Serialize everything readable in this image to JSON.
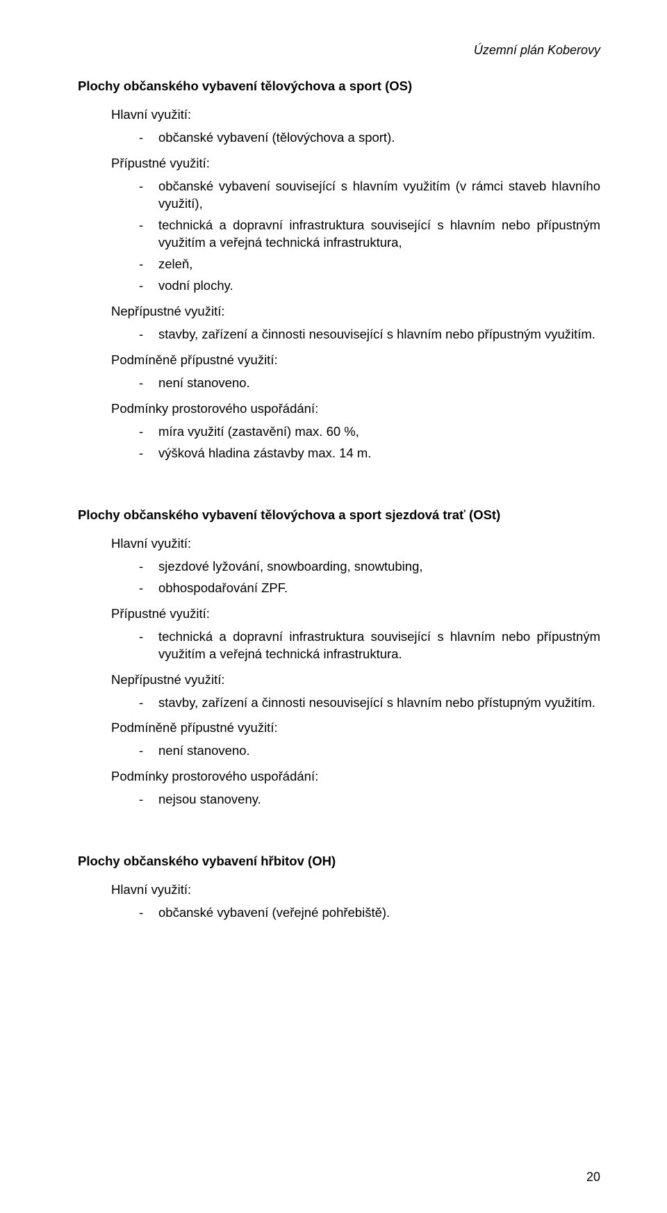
{
  "header": "Územní plán Koberovy",
  "page_number": "20",
  "section1": {
    "title": "Plochy občanského vybavení tělovýchova a sport (OS)",
    "blocks": [
      {
        "heading": "Hlavní využití:",
        "items": [
          "občanské vybavení (tělovýchova a sport)."
        ]
      },
      {
        "heading": "Přípustné využití:",
        "items": [
          "občanské vybavení související s hlavním využitím (v rámci staveb hlavního využití),",
          "technická a dopravní infrastruktura související s hlavním nebo přípustným využitím a veřejná technická infrastruktura,",
          "zeleň,",
          "vodní plochy."
        ]
      },
      {
        "heading": "Nepřípustné využití:",
        "items": [
          "stavby, zařízení a činnosti nesouvisející s hlavním nebo přípustným využitím."
        ]
      },
      {
        "heading": "Podmíněně přípustné využití:",
        "items": [
          "není stanoveno."
        ]
      },
      {
        "heading": "Podmínky prostorového uspořádání:",
        "items": [
          "míra využití (zastavění) max. 60 %,",
          "výšková hladina zástavby max. 14 m."
        ]
      }
    ]
  },
  "section2": {
    "title": "Plochy občanského vybavení tělovýchova a sport sjezdová trať (OSt)",
    "blocks": [
      {
        "heading": "Hlavní využití:",
        "items": [
          "sjezdové lyžování, snowboarding, snowtubing,",
          "obhospodařování ZPF."
        ]
      },
      {
        "heading": "Přípustné využití:",
        "items": [
          "technická a dopravní infrastruktura související s hlavním nebo přípustným využitím a veřejná technická infrastruktura."
        ]
      },
      {
        "heading": "Nepřípustné využití:",
        "items": [
          "stavby, zařízení a činnosti nesouvisející s hlavním nebo přístupným využitím."
        ]
      },
      {
        "heading": "Podmíněně přípustné využití:",
        "items": [
          "není stanoveno."
        ]
      },
      {
        "heading": "Podmínky prostorového uspořádání:",
        "items": [
          "nejsou stanoveny."
        ]
      }
    ]
  },
  "section3": {
    "title": "Plochy občanského vybavení hřbitov (OH)",
    "blocks": [
      {
        "heading": "Hlavní využití:",
        "items": [
          "občanské vybavení (veřejné pohřebiště)."
        ]
      }
    ]
  }
}
